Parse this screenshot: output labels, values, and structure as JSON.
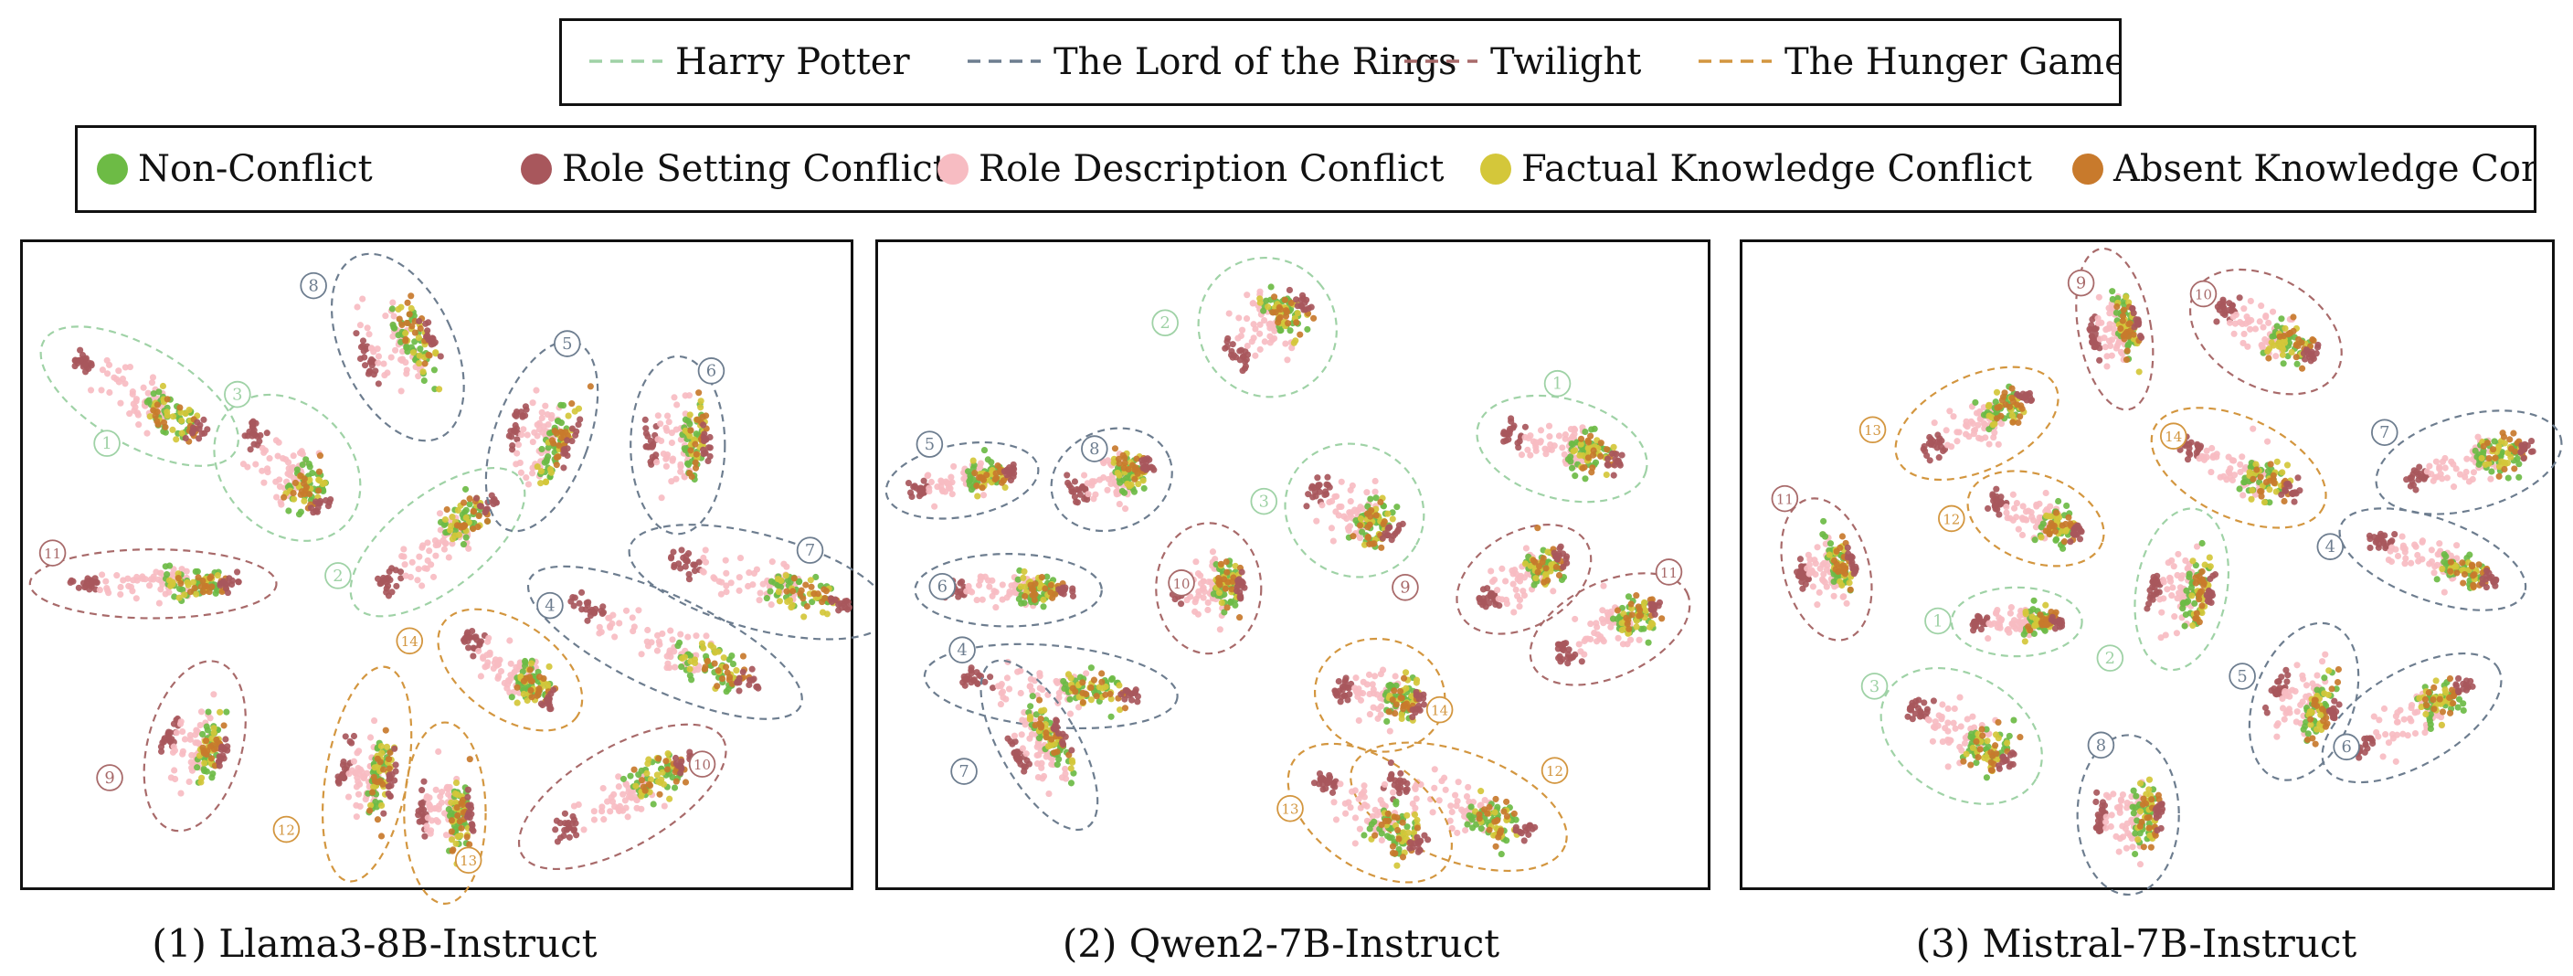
{
  "colors": {
    "harry_potter": "#9fd2a6",
    "lotr": "#6d7d8f",
    "twilight": "#a86a6a",
    "hunger_games": "#d3963f",
    "non_conflict": "#6dbb45",
    "role_setting": "#a8575c",
    "role_description": "#f7bcc2",
    "factual_knowledge": "#d4c73a",
    "absent_knowledge": "#c87a2c"
  },
  "legend_books": [
    {
      "label": "Harry Potter",
      "color_key": "harry_potter"
    },
    {
      "label": "The Lord of the Rings",
      "color_key": "lotr"
    },
    {
      "label": "Twilight",
      "color_key": "twilight"
    },
    {
      "label": "The Hunger Games",
      "color_key": "hunger_games"
    }
  ],
  "legend_conflicts": [
    {
      "label": "Non-Conflict",
      "color_key": "non_conflict"
    },
    {
      "label": "Role Setting Conflict",
      "color_key": "role_setting"
    },
    {
      "label": "Role Description Conflict",
      "color_key": "role_description"
    },
    {
      "label": "Factual Knowledge Conflict",
      "color_key": "factual_knowledge"
    },
    {
      "label": "Absent Knowledge Conflict",
      "color_key": "absent_knowledge"
    }
  ],
  "chart_data": [
    {
      "type": "scatter",
      "caption": "(1) Llama3-8B-Instruct",
      "clusters": [
        {
          "id": "1",
          "group": "harry_potter"
        },
        {
          "id": "2",
          "group": "harry_potter"
        },
        {
          "id": "3",
          "group": "harry_potter"
        },
        {
          "id": "4",
          "group": "lotr"
        },
        {
          "id": "5",
          "group": "lotr"
        },
        {
          "id": "6",
          "group": "lotr"
        },
        {
          "id": "7",
          "group": "lotr"
        },
        {
          "id": "8",
          "group": "lotr"
        },
        {
          "id": "9",
          "group": "twilight"
        },
        {
          "id": "10",
          "group": "twilight"
        },
        {
          "id": "11",
          "group": "twilight"
        },
        {
          "id": "12",
          "group": "hunger_games"
        },
        {
          "id": "13",
          "group": "hunger_games"
        },
        {
          "id": "14",
          "group": "hunger_games"
        }
      ]
    },
    {
      "type": "scatter",
      "caption": "(2) Qwen2-7B-Instruct",
      "clusters": [
        {
          "id": "1",
          "group": "harry_potter"
        },
        {
          "id": "2",
          "group": "harry_potter"
        },
        {
          "id": "3",
          "group": "harry_potter"
        },
        {
          "id": "4",
          "group": "lotr"
        },
        {
          "id": "5",
          "group": "lotr"
        },
        {
          "id": "6",
          "group": "lotr"
        },
        {
          "id": "7",
          "group": "lotr"
        },
        {
          "id": "8",
          "group": "lotr"
        },
        {
          "id": "9",
          "group": "twilight"
        },
        {
          "id": "10",
          "group": "twilight"
        },
        {
          "id": "11",
          "group": "twilight"
        },
        {
          "id": "12",
          "group": "hunger_games"
        },
        {
          "id": "13",
          "group": "hunger_games"
        },
        {
          "id": "14",
          "group": "hunger_games"
        }
      ]
    },
    {
      "type": "scatter",
      "caption": "(3) Mistral-7B-Instruct",
      "clusters": [
        {
          "id": "1",
          "group": "harry_potter"
        },
        {
          "id": "2",
          "group": "harry_potter"
        },
        {
          "id": "3",
          "group": "harry_potter"
        },
        {
          "id": "4",
          "group": "lotr"
        },
        {
          "id": "5",
          "group": "lotr"
        },
        {
          "id": "6",
          "group": "lotr"
        },
        {
          "id": "7",
          "group": "lotr"
        },
        {
          "id": "8",
          "group": "lotr"
        },
        {
          "id": "9",
          "group": "twilight"
        },
        {
          "id": "10",
          "group": "twilight"
        },
        {
          "id": "11",
          "group": "twilight"
        },
        {
          "id": "12",
          "group": "hunger_games"
        },
        {
          "id": "13",
          "group": "hunger_games"
        },
        {
          "id": "14",
          "group": "hunger_games"
        }
      ]
    }
  ]
}
